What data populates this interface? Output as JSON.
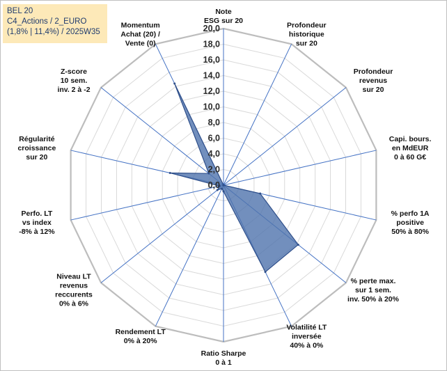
{
  "info": {
    "line1": "BEL 20",
    "line2": "C4_Actions / 2_EURO",
    "line3": "(1,8% | 11,4%) / 2025W35"
  },
  "colors": {
    "series_fill": "#4f73ad",
    "series_stroke": "#2f4f8a",
    "grid": "#d9d9d9",
    "spoke": "#4472c4",
    "info_bg": "#fde9b8"
  },
  "chart_data": {
    "type": "radar",
    "title": "",
    "rlim": [
      0,
      20
    ],
    "tick_labels": [
      "0,0",
      "2,0",
      "4,0",
      "6,0",
      "8,0",
      "10,0",
      "12,0",
      "14,0",
      "16,0",
      "18,0",
      "20,0"
    ],
    "grid": true,
    "legend": "none",
    "categories": [
      [
        "Note",
        "ESG sur 20"
      ],
      [
        "Profondeur",
        "historique",
        "sur 20"
      ],
      [
        "Profondeur",
        "revenus",
        "sur 20"
      ],
      [
        "Capi. bours.",
        "en MdEUR",
        "0 à 60 G€"
      ],
      [
        "% perfo 1A",
        "positive",
        "50% à 80%"
      ],
      [
        "% perte max.",
        "sur 1 sem.",
        "inv. 50% à 20%"
      ],
      [
        "Volatilité LT",
        "inversée",
        "40% à 0%"
      ],
      [
        "Ratio Sharpe",
        "0 à 1"
      ],
      [
        "Rendement LT",
        "0% à 20%"
      ],
      [
        "Niveau LT",
        "revenus",
        "reccurents",
        "0% à 6%"
      ],
      [
        "Perfo. LT",
        "vs index",
        "-8% à 12%"
      ],
      [
        "Régularité",
        "croissance",
        "sur 20"
      ],
      [
        "Z-score",
        "10 sem.",
        "inv. 2 à -2"
      ],
      [
        "Momentum",
        "Achat (20) /",
        "Vente (0)"
      ]
    ],
    "series": [
      {
        "values": [
          0,
          0,
          0,
          0,
          4.8,
          12.2,
          12.3,
          0.8,
          0.5,
          1.0,
          0.5,
          7.0,
          2.4,
          14.4
        ]
      }
    ]
  }
}
